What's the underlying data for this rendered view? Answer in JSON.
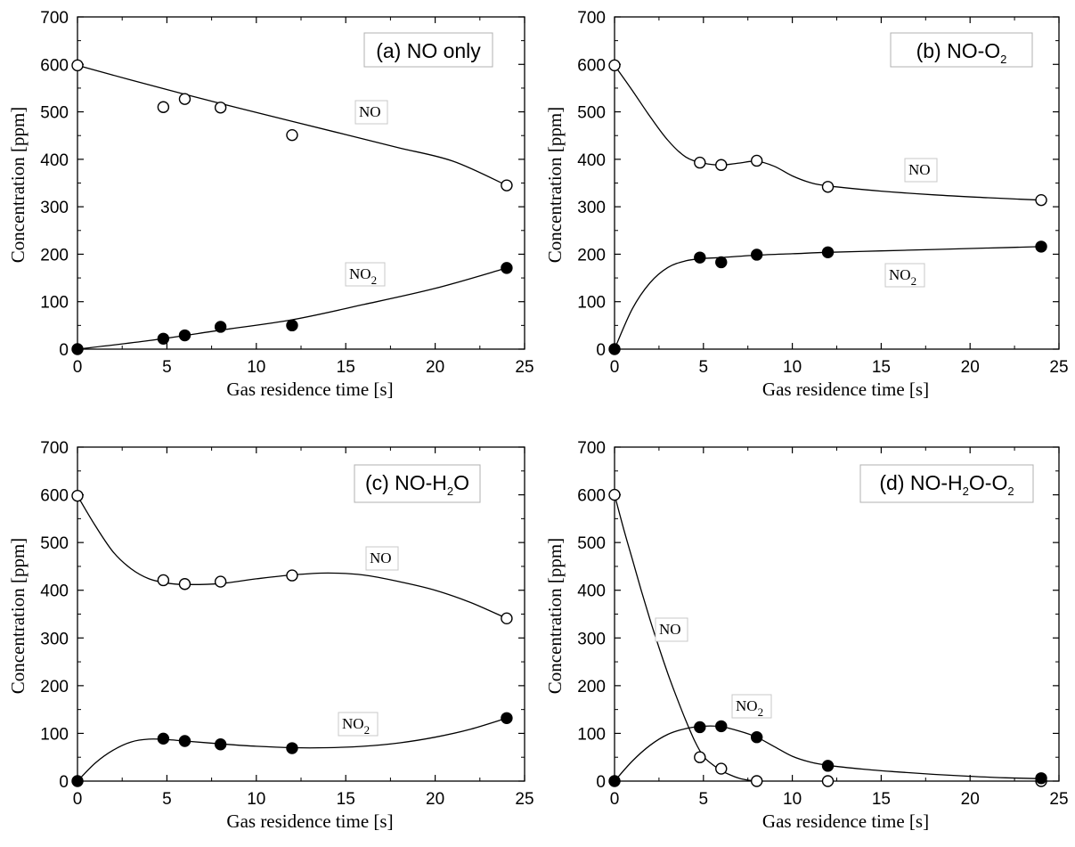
{
  "chart_data": [
    {
      "type": "line",
      "title": "(a) NO only",
      "title_parts": [
        {
          "t": "(a) NO only"
        }
      ],
      "xlabel": "Gas residence time [s]",
      "ylabel": "Concentration [ppm]",
      "xlim": [
        0,
        25
      ],
      "ylim": [
        0,
        700
      ],
      "xticks": [
        "0",
        "5",
        "10",
        "15",
        "20",
        "25"
      ],
      "yticks": [
        "0",
        "100",
        "200",
        "300",
        "400",
        "500",
        "600",
        "700"
      ],
      "grid": false,
      "series": [
        {
          "name": "NO",
          "label_parts": [
            {
              "t": "NO"
            }
          ],
          "marker": "open-circle",
          "x": [
            0,
            4.8,
            6,
            8,
            12,
            24
          ],
          "y": [
            598,
            510,
            527,
            509,
            451,
            345
          ],
          "fit": [
            [
              0,
              598
            ],
            [
              3,
              567
            ],
            [
              6,
              537
            ],
            [
              9,
              508
            ],
            [
              12,
              480
            ],
            [
              15,
              452
            ],
            [
              18,
              424
            ],
            [
              21,
              396
            ],
            [
              24,
              345
            ]
          ]
        },
        {
          "name": "NO2",
          "label_parts": [
            {
              "t": "NO"
            },
            {
              "t": "2",
              "sub": true
            }
          ],
          "marker": "filled-circle",
          "x": [
            0,
            4.8,
            6,
            8,
            12,
            24
          ],
          "y": [
            0,
            22,
            29,
            47,
            50,
            171
          ],
          "fit": [
            [
              0,
              0
            ],
            [
              4,
              18
            ],
            [
              8,
              40
            ],
            [
              12,
              62
            ],
            [
              16,
              94
            ],
            [
              20,
              128
            ],
            [
              24,
              171
            ]
          ]
        }
      ]
    },
    {
      "type": "line",
      "title": "(b) NO-O2",
      "title_parts": [
        {
          "t": "(b) NO-O"
        },
        {
          "t": "2",
          "sub": true
        }
      ],
      "xlabel": "Gas residence time [s]",
      "ylabel": "Concentration [ppm]",
      "xlim": [
        0,
        25
      ],
      "ylim": [
        0,
        700
      ],
      "xticks": [
        "0",
        "5",
        "10",
        "15",
        "20",
        "25"
      ],
      "yticks": [
        "0",
        "100",
        "200",
        "300",
        "400",
        "500",
        "600",
        "700"
      ],
      "grid": false,
      "series": [
        {
          "name": "NO",
          "label_parts": [
            {
              "t": "NO"
            }
          ],
          "marker": "open-circle",
          "x": [
            0,
            4.8,
            6,
            8,
            12,
            24
          ],
          "y": [
            598,
            393,
            388,
            397,
            342,
            314
          ],
          "fit": [
            [
              0,
              598
            ],
            [
              1,
              545
            ],
            [
              2,
              490
            ],
            [
              3,
              440
            ],
            [
              4,
              405
            ],
            [
              5,
              392
            ],
            [
              6,
              388
            ],
            [
              7,
              392
            ],
            [
              8,
              396
            ],
            [
              9,
              385
            ],
            [
              10,
              365
            ],
            [
              11,
              351
            ],
            [
              12,
              344
            ],
            [
              15,
              333
            ],
            [
              18,
              325
            ],
            [
              21,
              319
            ],
            [
              24,
              314
            ]
          ]
        },
        {
          "name": "NO2",
          "label_parts": [
            {
              "t": "NO"
            },
            {
              "t": "2",
              "sub": true
            }
          ],
          "marker": "filled-circle",
          "x": [
            0,
            4.8,
            6,
            8,
            12,
            24
          ],
          "y": [
            0,
            193,
            183,
            199,
            204,
            216
          ],
          "fit": [
            [
              0,
              0
            ],
            [
              1,
              85
            ],
            [
              2,
              140
            ],
            [
              3,
              172
            ],
            [
              4,
              186
            ],
            [
              5,
              191
            ],
            [
              6,
              193
            ],
            [
              8,
              198
            ],
            [
              10,
              201
            ],
            [
              12,
              204
            ],
            [
              15,
              207
            ],
            [
              18,
              210
            ],
            [
              21,
              213
            ],
            [
              24,
              216
            ]
          ]
        }
      ]
    },
    {
      "type": "line",
      "title": "(c) NO-H2O",
      "title_parts": [
        {
          "t": "(c) NO-H"
        },
        {
          "t": "2",
          "sub": true
        },
        {
          "t": "O"
        }
      ],
      "xlabel": "Gas residence time [s]",
      "ylabel": "Concentration [ppm]",
      "xlim": [
        0,
        25
      ],
      "ylim": [
        0,
        700
      ],
      "xticks": [
        "0",
        "5",
        "10",
        "15",
        "20",
        "25"
      ],
      "yticks": [
        "0",
        "100",
        "200",
        "300",
        "400",
        "500",
        "600",
        "700"
      ],
      "grid": false,
      "series": [
        {
          "name": "NO",
          "label_parts": [
            {
              "t": "NO"
            }
          ],
          "marker": "open-circle",
          "x": [
            0,
            4.8,
            6,
            8,
            12,
            24
          ],
          "y": [
            598,
            421,
            413,
            418,
            431,
            341
          ],
          "fit": [
            [
              0,
              598
            ],
            [
              1,
              535
            ],
            [
              2,
              480
            ],
            [
              3,
              445
            ],
            [
              4,
              424
            ],
            [
              5,
              415
            ],
            [
              6,
              412
            ],
            [
              8,
              414
            ],
            [
              10,
              424
            ],
            [
              12,
              432
            ],
            [
              14,
              436
            ],
            [
              16,
              432
            ],
            [
              18,
              418
            ],
            [
              20,
              400
            ],
            [
              22,
              374
            ],
            [
              24,
              341
            ]
          ]
        },
        {
          "name": "NO2",
          "label_parts": [
            {
              "t": "NO"
            },
            {
              "t": "2",
              "sub": true
            }
          ],
          "marker": "filled-circle",
          "x": [
            0,
            4.8,
            6,
            8,
            12,
            24
          ],
          "y": [
            0,
            89,
            84,
            77,
            69,
            132
          ],
          "fit": [
            [
              0,
              0
            ],
            [
              1,
              38
            ],
            [
              2,
              65
            ],
            [
              3,
              82
            ],
            [
              4,
              88
            ],
            [
              5,
              87
            ],
            [
              6,
              84
            ],
            [
              8,
              78
            ],
            [
              10,
              73
            ],
            [
              12,
              70
            ],
            [
              14,
              70
            ],
            [
              16,
              73
            ],
            [
              18,
              80
            ],
            [
              20,
              92
            ],
            [
              22,
              109
            ],
            [
              24,
              132
            ]
          ]
        }
      ]
    },
    {
      "type": "line",
      "title": "(d) NO-H2O-O2",
      "title_parts": [
        {
          "t": "(d) NO-H"
        },
        {
          "t": "2",
          "sub": true
        },
        {
          "t": "O-O"
        },
        {
          "t": "2",
          "sub": true
        }
      ],
      "xlabel": "Gas residence time [s]",
      "ylabel": "Concentration [ppm]",
      "xlim": [
        0,
        25
      ],
      "ylim": [
        0,
        700
      ],
      "xticks": [
        "0",
        "5",
        "10",
        "15",
        "20",
        "25"
      ],
      "yticks": [
        "0",
        "100",
        "200",
        "300",
        "400",
        "500",
        "600",
        "700"
      ],
      "grid": false,
      "series": [
        {
          "name": "NO",
          "label_parts": [
            {
              "t": "NO"
            }
          ],
          "marker": "open-circle",
          "x": [
            0,
            4.8,
            6,
            8,
            12,
            24
          ],
          "y": [
            600,
            50,
            26,
            0,
            0,
            0
          ],
          "fit": [
            [
              0,
              600
            ],
            [
              0.5,
              530
            ],
            [
              1,
              465
            ],
            [
              1.5,
              400
            ],
            [
              2,
              338
            ],
            [
              2.5,
              280
            ],
            [
              3,
              225
            ],
            [
              3.5,
              175
            ],
            [
              4,
              128
            ],
            [
              4.5,
              85
            ],
            [
              5,
              52
            ],
            [
              5.5,
              35
            ],
            [
              6,
              22
            ],
            [
              6.5,
              13
            ],
            [
              7,
              6
            ],
            [
              7.5,
              2
            ],
            [
              8,
              0
            ]
          ]
        },
        {
          "name": "NO2",
          "label_parts": [
            {
              "t": "NO"
            },
            {
              "t": "2",
              "sub": true
            }
          ],
          "marker": "filled-circle",
          "x": [
            0,
            4.8,
            6,
            8,
            12,
            24
          ],
          "y": [
            0,
            113,
            115,
            92,
            32,
            6
          ],
          "fit": [
            [
              0,
              0
            ],
            [
              1,
              42
            ],
            [
              2,
              75
            ],
            [
              3,
              98
            ],
            [
              4,
              110
            ],
            [
              5,
              115
            ],
            [
              6,
              114
            ],
            [
              7,
              105
            ],
            [
              8,
              92
            ],
            [
              9,
              72
            ],
            [
              10,
              52
            ],
            [
              11,
              40
            ],
            [
              12,
              33
            ],
            [
              14,
              25
            ],
            [
              16,
              19
            ],
            [
              18,
              14
            ],
            [
              20,
              10
            ],
            [
              22,
              7
            ],
            [
              24,
              5
            ]
          ]
        }
      ]
    }
  ]
}
